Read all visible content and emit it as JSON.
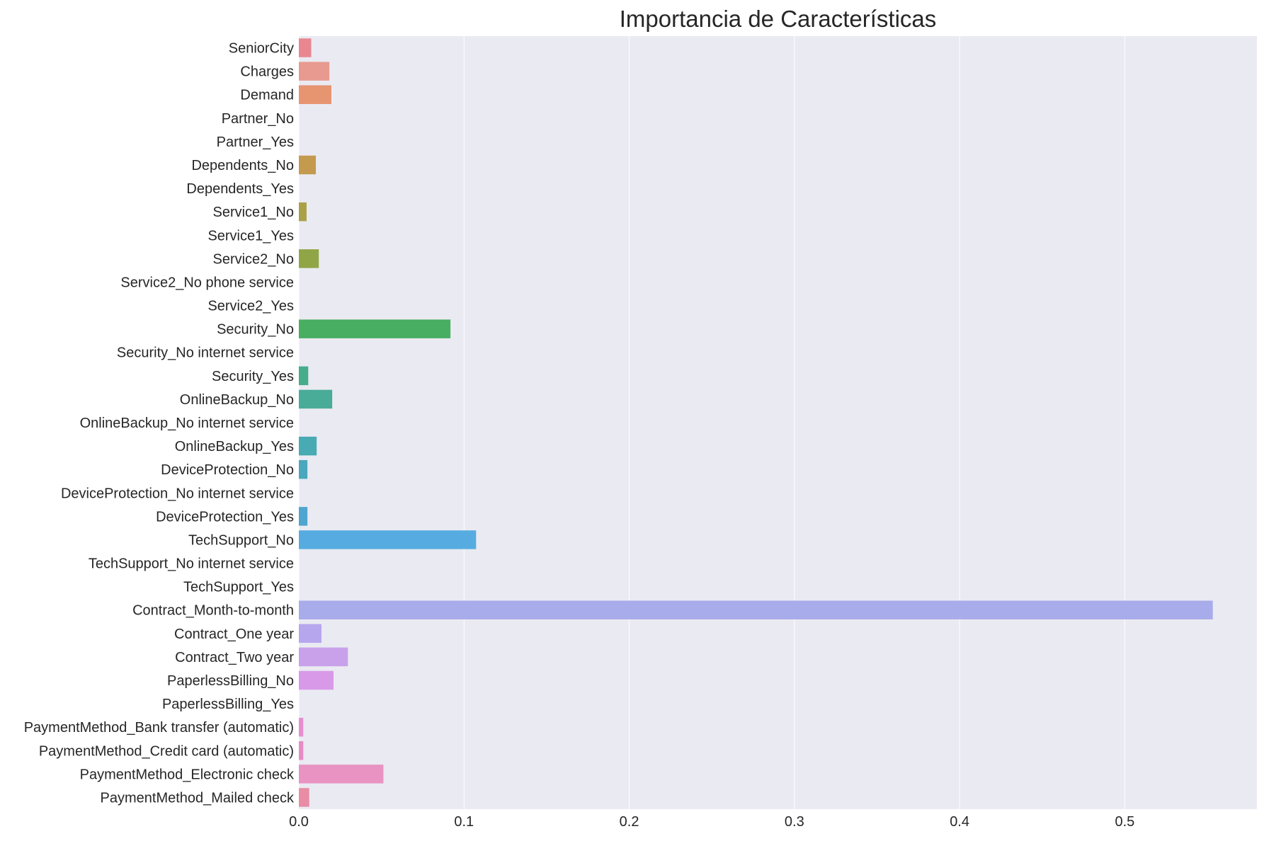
{
  "chart_data": {
    "type": "bar",
    "orientation": "horizontal",
    "title": "Importancia de Características",
    "xlabel": "",
    "ylabel": "",
    "xlim": [
      0.0,
      0.58
    ],
    "x_ticks": [
      "0.0",
      "0.1",
      "0.2",
      "0.3",
      "0.4",
      "0.5"
    ],
    "grid": true,
    "background_color": "#EAEAF2",
    "grid_color": "#FFFFFF",
    "categories": [
      "SeniorCity",
      "Charges",
      "Demand",
      "Partner_No",
      "Partner_Yes",
      "Dependents_No",
      "Dependents_Yes",
      "Service1_No",
      "Service1_Yes",
      "Service2_No",
      "Service2_No phone service",
      "Service2_Yes",
      "Security_No",
      "Security_No internet service",
      "Security_Yes",
      "OnlineBackup_No",
      "OnlineBackup_No internet service",
      "OnlineBackup_Yes",
      "DeviceProtection_No",
      "DeviceProtection_No internet service",
      "DeviceProtection_Yes",
      "TechSupport_No",
      "TechSupport_No internet service",
      "TechSupport_Yes",
      "Contract_Month-to-month",
      "Contract_One year",
      "Contract_Two year",
      "PaperlessBilling_No",
      "PaperlessBilling_Yes",
      "PaymentMethod_Bank transfer (automatic)",
      "PaymentMethod_Credit card (automatic)",
      "PaymentMethod_Electronic check",
      "PaymentMethod_Mailed check"
    ],
    "values": [
      0.0075,
      0.0185,
      0.0197,
      0.0,
      0.0,
      0.0103,
      0.0,
      0.0047,
      0.0,
      0.0121,
      0.0,
      0.0,
      0.0918,
      0.0,
      0.0057,
      0.0202,
      0.0,
      0.0108,
      0.0052,
      0.0,
      0.0052,
      0.1073,
      0.0,
      0.0,
      0.5533,
      0.0137,
      0.0297,
      0.021,
      0.0,
      0.0027,
      0.0027,
      0.0512,
      0.0063
    ],
    "colors": [
      "#e8878f",
      "#e89a90",
      "#e79471",
      "#d99d55",
      "#cca24d",
      "#c49a4e",
      "#b39e4c",
      "#aaa048",
      "#9aa446",
      "#90a646",
      "#7ba946",
      "#67ad48",
      "#48ae62",
      "#48ae7a",
      "#46ad8a",
      "#48ac98",
      "#49aca6",
      "#48aab3",
      "#4aa7bd",
      "#4ba5c5",
      "#4fa5ce",
      "#56ace0",
      "#7da9e8",
      "#93a8ec",
      "#a8acea",
      "#b6a6ee",
      "#c8a1ea",
      "#d899e8",
      "#e092df",
      "#e58fd0",
      "#e68cc4",
      "#e893c1",
      "#e88da5"
    ]
  }
}
